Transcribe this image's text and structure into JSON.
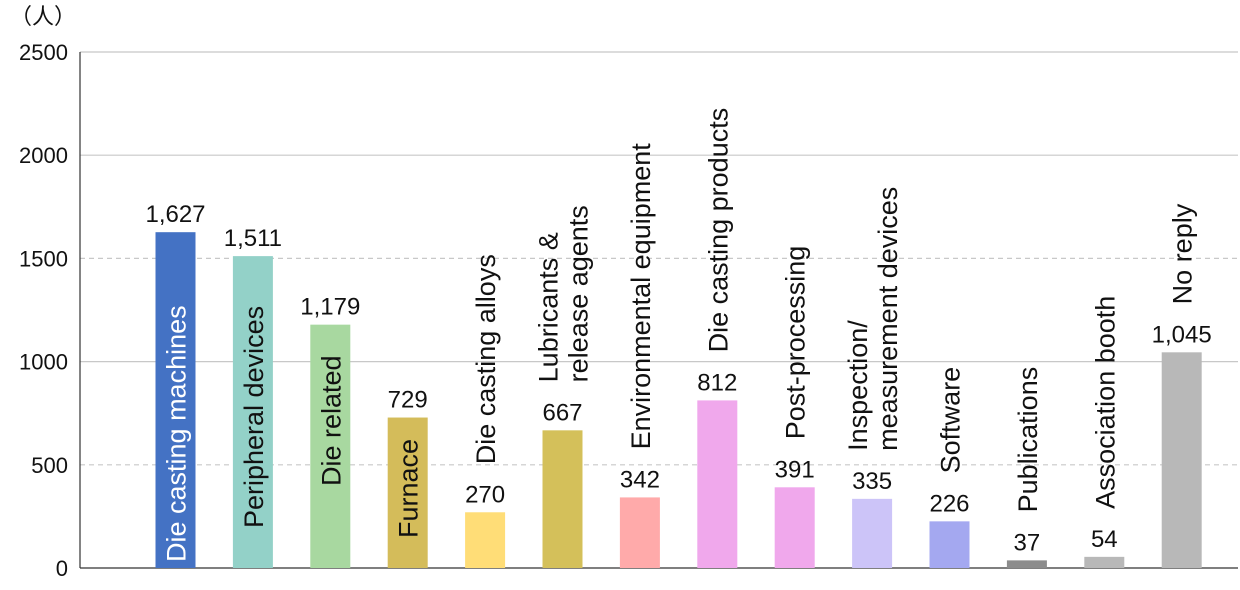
{
  "chart_data": {
    "type": "bar",
    "unit_label": "（人）",
    "ylim": [
      0,
      2500
    ],
    "yticks": [
      0,
      500,
      1000,
      1500,
      2000,
      2500
    ],
    "grid": true,
    "categories": [
      "Die casting machines",
      "Peripheral devices",
      "Die related",
      "Furnace",
      "Die casting alloys",
      "Lubricants & release agents",
      "Environmental equipment",
      "Die casting products",
      "Post-processing",
      "Inspection/ measurement devices",
      "Software",
      "Publications",
      "Association booth",
      "No reply"
    ],
    "category_lines": [
      [
        "Die casting machines"
      ],
      [
        "Peripheral devices"
      ],
      [
        "Die related"
      ],
      [
        "Furnace"
      ],
      [
        "Die casting alloys"
      ],
      [
        "Lubricants &",
        "release agents"
      ],
      [
        "Environmental equipment"
      ],
      [
        "Die casting products"
      ],
      [
        "Post-processing"
      ],
      [
        "Inspection/",
        "measurement devices"
      ],
      [
        "Software"
      ],
      [
        "Publications"
      ],
      [
        "Association booth"
      ],
      [
        "No reply"
      ]
    ],
    "values": [
      1627,
      1511,
      1179,
      729,
      270,
      667,
      342,
      812,
      391,
      335,
      226,
      37,
      54,
      1045
    ],
    "value_labels": [
      "1,627",
      "1,511",
      "1,179",
      "729",
      "270",
      "667",
      "342",
      "812",
      "391",
      "335",
      "226",
      "37",
      "54",
      "1,045"
    ],
    "colors": [
      "#4472C4",
      "#93D1C8",
      "#A8D8A0",
      "#D4BC5A",
      "#FFDD77",
      "#D4C05A",
      "#FFAAAA",
      "#F0A8EC",
      "#F0A8EC",
      "#CCC4F8",
      "#A4A8F0",
      "#8C8C8C",
      "#B8B8B8",
      "#B8B8B8"
    ],
    "label_colors": [
      "#ffffff",
      "#111111",
      "#111111",
      "#111111",
      "#111111",
      "#111111",
      "#111111",
      "#111111",
      "#111111",
      "#111111",
      "#111111",
      "#111111",
      "#111111",
      "#111111"
    ]
  }
}
